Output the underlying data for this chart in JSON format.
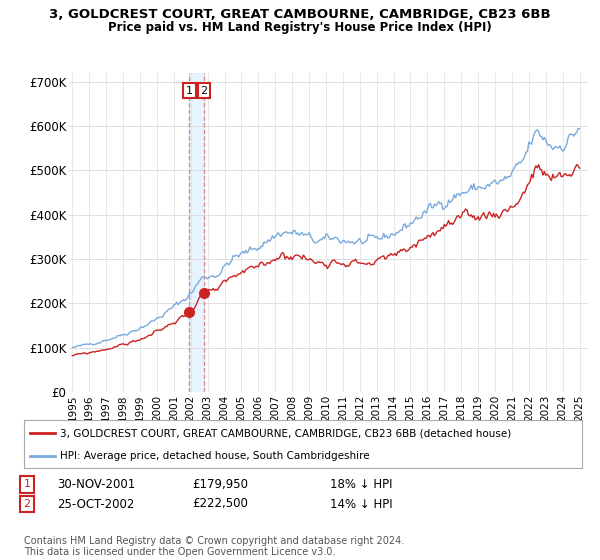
{
  "title": "3, GOLDCREST COURT, GREAT CAMBOURNE, CAMBRIDGE, CB23 6BB",
  "subtitle": "Price paid vs. HM Land Registry's House Price Index (HPI)",
  "ylim": [
    0,
    720000
  ],
  "yticks": [
    0,
    100000,
    200000,
    300000,
    400000,
    500000,
    600000,
    700000
  ],
  "ytick_labels": [
    "£0",
    "£100K",
    "£200K",
    "£300K",
    "£400K",
    "£500K",
    "£600K",
    "£700K"
  ],
  "hpi_color": "#7aaadd",
  "price_color": "#cc2222",
  "dashed_line_color": "#dd8888",
  "shade_color": "#ddeeff",
  "background_color": "#ffffff",
  "grid_color": "#dddddd",
  "t1_x": 2001.917,
  "t1_y": 179950,
  "t2_x": 2002.792,
  "t2_y": 222500,
  "transaction1_date": "30-NOV-2001",
  "transaction1_price": "£179,950",
  "transaction1_hpi": "18% ↓ HPI",
  "transaction2_date": "25-OCT-2002",
  "transaction2_price": "£222,500",
  "transaction2_hpi": "14% ↓ HPI",
  "legend_label_price": "3, GOLDCREST COURT, GREAT CAMBOURNE, CAMBRIDGE, CB23 6BB (detached house)",
  "legend_label_hpi": "HPI: Average price, detached house, South Cambridgeshire",
  "footer": "Contains HM Land Registry data © Crown copyright and database right 2024.\nThis data is licensed under the Open Government Licence v3.0.",
  "xmin": 1994.8,
  "xmax": 2025.5
}
